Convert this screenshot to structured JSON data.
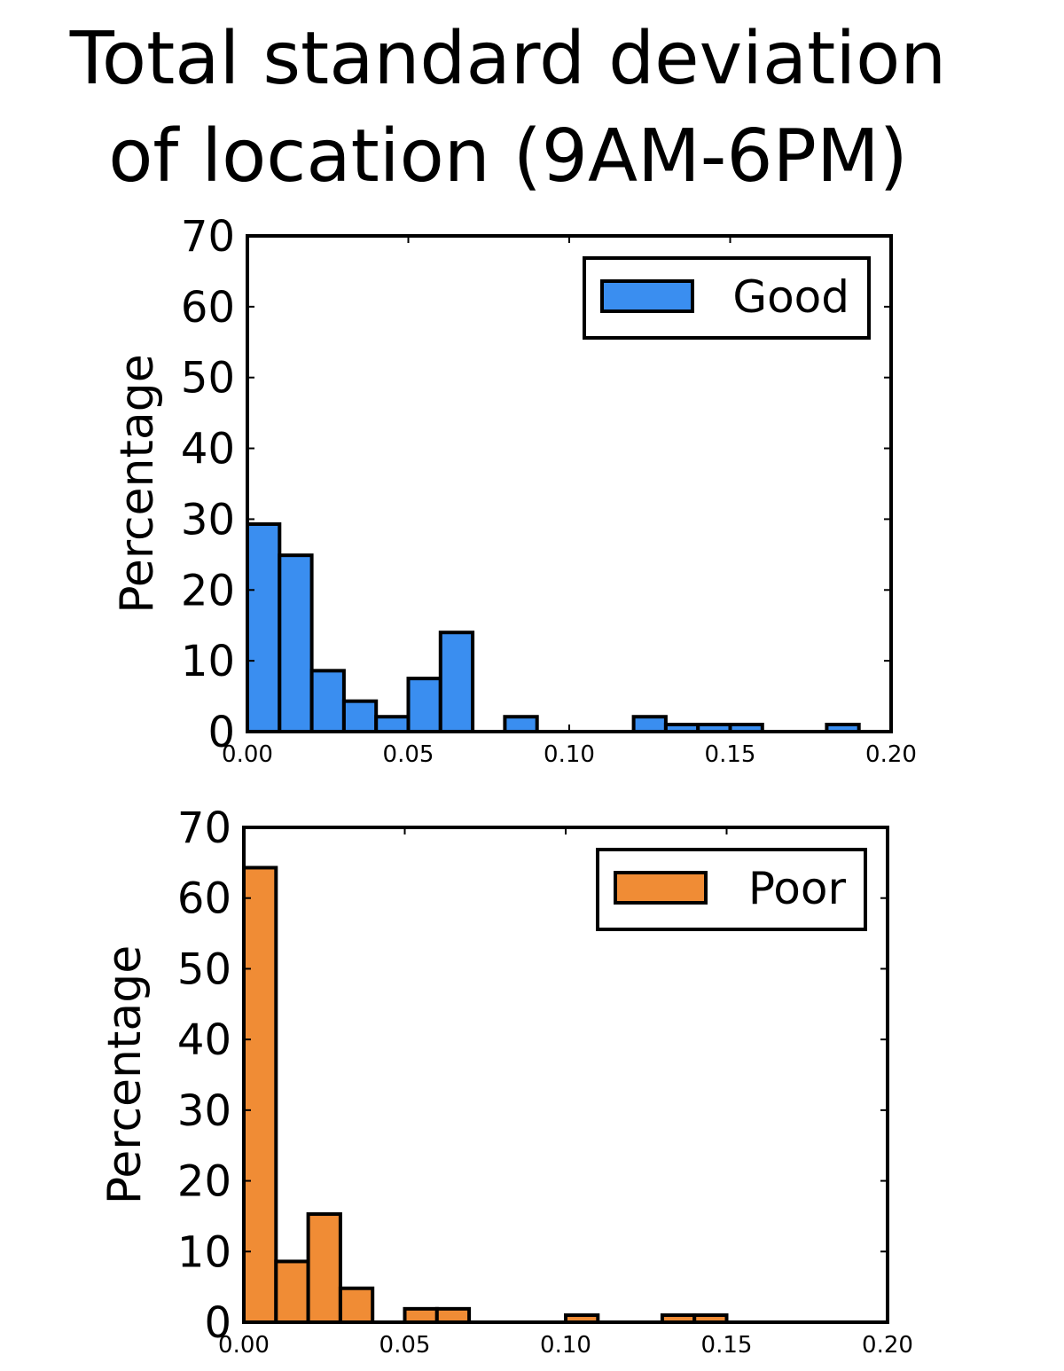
{
  "title_lines": [
    "Total standard deviation",
    "of location (9AM-6PM)"
  ],
  "chart_data": [
    {
      "type": "bar",
      "subtype": "histogram",
      "series": [
        {
          "name": "Good",
          "color": "#3a8ef0",
          "bins": [
            {
              "x0": 0.0,
              "x1": 0.01,
              "value": 29.3
            },
            {
              "x0": 0.01,
              "x1": 0.02,
              "value": 24.9
            },
            {
              "x0": 0.02,
              "x1": 0.03,
              "value": 8.6
            },
            {
              "x0": 0.03,
              "x1": 0.04,
              "value": 4.3
            },
            {
              "x0": 0.04,
              "x1": 0.05,
              "value": 2.1
            },
            {
              "x0": 0.05,
              "x1": 0.06,
              "value": 7.5
            },
            {
              "x0": 0.06,
              "x1": 0.07,
              "value": 14.0
            },
            {
              "x0": 0.08,
              "x1": 0.09,
              "value": 2.1
            },
            {
              "x0": 0.12,
              "x1": 0.13,
              "value": 2.1
            },
            {
              "x0": 0.13,
              "x1": 0.14,
              "value": 1.0
            },
            {
              "x0": 0.14,
              "x1": 0.15,
              "value": 1.0
            },
            {
              "x0": 0.15,
              "x1": 0.16,
              "value": 1.0
            },
            {
              "x0": 0.18,
              "x1": 0.19,
              "value": 1.0
            }
          ]
        }
      ],
      "ylabel": "Percentage",
      "xlim": [
        0,
        0.2
      ],
      "ylim": [
        0,
        70
      ],
      "xticks": [
        "0.00",
        "0.05",
        "0.10",
        "0.15",
        "0.20"
      ],
      "yticks": [
        "0",
        "10",
        "20",
        "30",
        "40",
        "50",
        "60",
        "70"
      ],
      "legend": "top-right",
      "grid": false
    },
    {
      "type": "bar",
      "subtype": "histogram",
      "series": [
        {
          "name": "Poor",
          "color": "#f08c35",
          "bins": [
            {
              "x0": 0.0,
              "x1": 0.01,
              "value": 64.3
            },
            {
              "x0": 0.01,
              "x1": 0.02,
              "value": 8.6
            },
            {
              "x0": 0.02,
              "x1": 0.03,
              "value": 15.3
            },
            {
              "x0": 0.03,
              "x1": 0.04,
              "value": 4.8
            },
            {
              "x0": 0.05,
              "x1": 0.06,
              "value": 1.9
            },
            {
              "x0": 0.06,
              "x1": 0.07,
              "value": 1.9
            },
            {
              "x0": 0.1,
              "x1": 0.11,
              "value": 1.0
            },
            {
              "x0": 0.13,
              "x1": 0.14,
              "value": 1.0
            },
            {
              "x0": 0.14,
              "x1": 0.15,
              "value": 1.0
            }
          ]
        }
      ],
      "ylabel": "Percentage",
      "xlim": [
        0,
        0.2
      ],
      "ylim": [
        0,
        70
      ],
      "xticks": [
        "0.00",
        "0.05",
        "0.10",
        "0.15",
        "0.20"
      ],
      "yticks": [
        "0",
        "10",
        "20",
        "30",
        "40",
        "50",
        "60",
        "70"
      ],
      "legend": "top-right",
      "grid": false
    }
  ]
}
